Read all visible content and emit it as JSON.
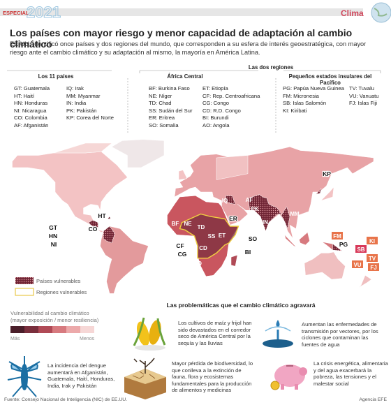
{
  "header": {
    "section": "ESPECIAL",
    "year": "2021",
    "topic": "Clima"
  },
  "title": "Los países con mayor riesgo y menor capacidad de adaptación al cambio climático",
  "subtitle": "EE.UU. identificó once países y dos regiones del mundo, que corresponden a su esfera de interés geoestratégica, con mayor riesgo ante el cambio climático y su adaptación al mismo, la mayoría en América Latina.",
  "countries": {
    "heading": "Los 11 países",
    "columns": [
      [
        "GT: Guatemala",
        "HT: Haití",
        "HN: Honduras",
        "NI: Nicaragua",
        "CO: Colombia",
        "AF: Afganistán"
      ],
      [
        "IQ: Irak",
        "MM: Myanmar",
        "IN: India",
        "PK: Pakistán",
        "KP: Corea del Norte"
      ]
    ]
  },
  "regions": {
    "heading": "Las dos regiones",
    "groups": [
      {
        "name": "África Central",
        "columns": [
          [
            "BF: Burkina Faso",
            "NE: Níger",
            "TD: Chad",
            "SS: Sudán del Sur",
            "ER: Eritrea",
            "SO: Somalia"
          ],
          [
            "ET: Etiopía",
            "CF: Rep. Centroafricana",
            "CG: Congo",
            "CD: R.D. Congo",
            "BI: Burundi",
            "AO: Angola"
          ]
        ]
      },
      {
        "name": "Pequeños estados insulares del Pacífico",
        "columns": [
          [
            "PG: Papúa Nueva Guinea",
            "FM: Micronesia",
            "SB: Islas Salomón",
            "KI: Kiribati"
          ],
          [
            "TV: Tuvalu",
            "VU: Vanuatu",
            "FJ: Islas Fiji"
          ]
        ]
      }
    ]
  },
  "map_labels": [
    "KP",
    "HT",
    "GT",
    "HN",
    "NI",
    "CO",
    "AF",
    "IQ",
    "PK",
    "IN",
    "MM",
    "BF",
    "NE",
    "TD",
    "ER",
    "SO",
    "ET",
    "SS",
    "CF",
    "CG",
    "CD",
    "BI",
    "AO",
    "FM",
    "PG",
    "KI",
    "SB",
    "TV",
    "VU",
    "FJ"
  ],
  "legend": {
    "vulnerable_countries": "Países vulnerables",
    "vulnerable_regions": "Regiones vulnerables",
    "scale_title": "Vulnerabilidad al cambio climático",
    "scale_note": "(mayor exposición / menor resiliencia)",
    "more": "Más",
    "less": "Menos"
  },
  "problems": {
    "heading": "Las problemáticas que el cambio climático agravará",
    "items": [
      "Los cultivos de maíz y frijol han sido devastados en el corredor seco de América Central por la sequía y las lluvias",
      "Aumentan las enfermedades de transmisión por vectores, por los ciclones que contaminan las fuentes de agua",
      "La incidencia del dengue aumentará en Afganistán, Guatemala, Haití, Honduras, India, Irak y Pakistán",
      "Mayor pérdida de biodiversidad, lo que conlleva a la extinción de fauna, flora y ecosistemas fundamentales para la producción de alimentos y medicinas",
      "La crisis energética, alimentaria y del agua exacerbará la pobreza, las tensiones y el malestar social"
    ]
  },
  "footer": {
    "source": "Fuente: Consejo Nacional de Inteligencia (NIC) de EE.UU.",
    "credit": "Agencia EFE"
  }
}
